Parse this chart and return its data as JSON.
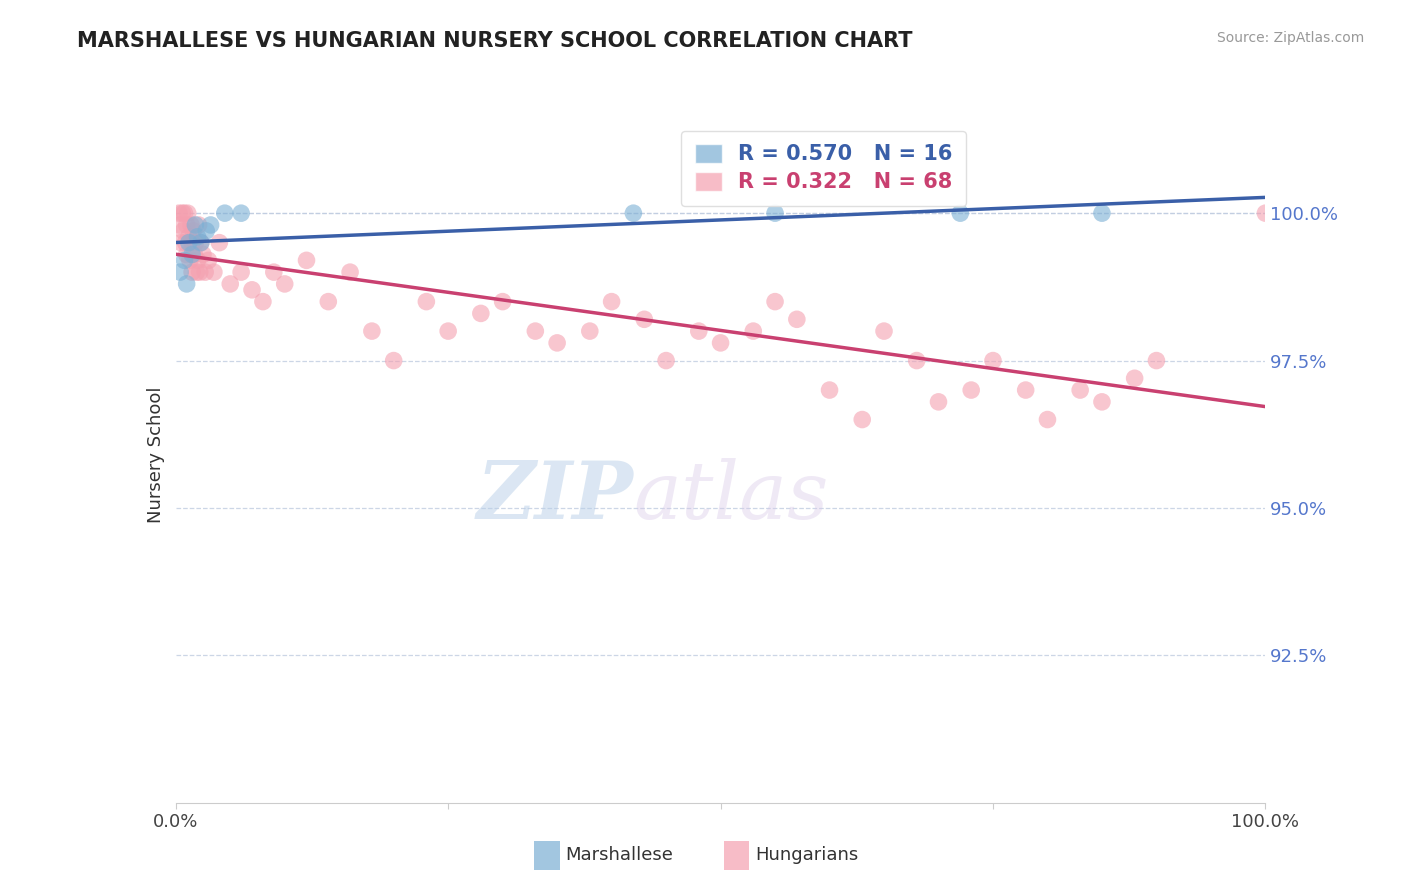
{
  "title": "MARSHALLESE VS HUNGARIAN NURSERY SCHOOL CORRELATION CHART",
  "source_text": "Source: ZipAtlas.com",
  "ylabel": "Nursery School",
  "xlim": [
    0.0,
    100.0
  ],
  "ylim": [
    90.0,
    101.8
  ],
  "yticks": [
    92.5,
    95.0,
    97.5,
    100.0
  ],
  "ytick_labels": [
    "92.5%",
    "95.0%",
    "97.5%",
    "100.0%"
  ],
  "xtick_positions": [
    0.0,
    25.0,
    50.0,
    75.0,
    100.0
  ],
  "xtick_labels": [
    "0.0%",
    "",
    "",
    "",
    "100.0%"
  ],
  "blue_color": "#7bafd4",
  "pink_color": "#f4a0b0",
  "blue_line_color": "#3a5fa8",
  "pink_line_color": "#c94070",
  "legend_blue_R": "0.570",
  "legend_blue_N": "16",
  "legend_pink_R": "0.322",
  "legend_pink_N": "68",
  "watermark_zip": "ZIP",
  "watermark_atlas": "atlas",
  "footer_blue": "Marshallese",
  "footer_pink": "Hungarians",
  "marshallese_x": [
    0.4,
    0.8,
    1.0,
    1.2,
    1.5,
    1.8,
    2.0,
    2.3,
    2.8,
    3.2,
    4.5,
    6.0,
    42.0,
    55.0,
    72.0,
    85.0
  ],
  "marshallese_y": [
    99.0,
    99.2,
    98.8,
    99.5,
    99.3,
    99.8,
    99.6,
    99.5,
    99.7,
    99.8,
    100.0,
    100.0,
    100.0,
    100.0,
    100.0,
    100.0
  ],
  "hungarians_x": [
    0.3,
    0.4,
    0.5,
    0.6,
    0.7,
    0.8,
    0.9,
    1.0,
    1.0,
    1.1,
    1.2,
    1.3,
    1.4,
    1.5,
    1.5,
    1.6,
    1.7,
    1.8,
    1.9,
    2.0,
    2.1,
    2.2,
    2.3,
    2.5,
    2.7,
    3.0,
    3.5,
    4.0,
    5.0,
    6.0,
    7.0,
    8.0,
    9.0,
    10.0,
    12.0,
    14.0,
    16.0,
    18.0,
    20.0,
    23.0,
    25.0,
    28.0,
    30.0,
    33.0,
    35.0,
    38.0,
    40.0,
    43.0,
    45.0,
    48.0,
    50.0,
    53.0,
    55.0,
    57.0,
    60.0,
    63.0,
    65.0,
    68.0,
    70.0,
    73.0,
    75.0,
    78.0,
    80.0,
    83.0,
    85.0,
    88.0,
    90.0,
    100.0
  ],
  "hungarians_y": [
    100.0,
    99.8,
    99.5,
    100.0,
    99.7,
    100.0,
    99.5,
    99.8,
    99.3,
    100.0,
    99.6,
    99.2,
    99.8,
    99.5,
    99.0,
    99.7,
    99.3,
    99.5,
    99.0,
    99.2,
    99.8,
    99.0,
    99.5,
    99.3,
    99.0,
    99.2,
    99.0,
    99.5,
    98.8,
    99.0,
    98.7,
    98.5,
    99.0,
    98.8,
    99.2,
    98.5,
    99.0,
    98.0,
    97.5,
    98.5,
    98.0,
    98.3,
    98.5,
    98.0,
    97.8,
    98.0,
    98.5,
    98.2,
    97.5,
    98.0,
    97.8,
    98.0,
    98.5,
    98.2,
    97.0,
    96.5,
    98.0,
    97.5,
    96.8,
    97.0,
    97.5,
    97.0,
    96.5,
    97.0,
    96.8,
    97.2,
    97.5,
    100.0
  ]
}
